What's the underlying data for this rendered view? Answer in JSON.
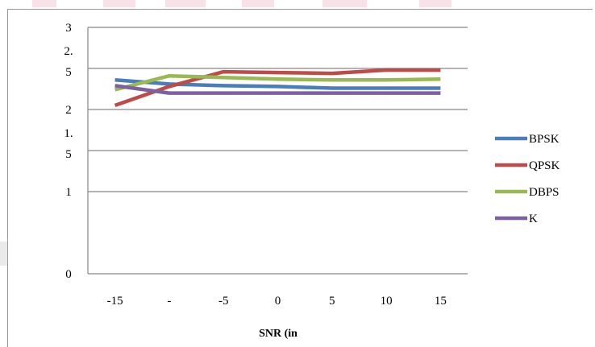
{
  "chart_data": {
    "type": "line",
    "title": "",
    "xlabel": "SNR (in",
    "ylabel": "",
    "x_tick_labels": [
      "-15",
      "-",
      "-5",
      "0",
      "5",
      "10",
      "15"
    ],
    "y_tick_labels": [
      "0",
      "1",
      "1.\n5",
      "2",
      "2.\n5",
      "3"
    ],
    "y_ticks": [
      0,
      1,
      1.5,
      2,
      2.5,
      3
    ],
    "ylim": [
      0,
      3
    ],
    "grid": true,
    "legend_position": "right",
    "series": [
      {
        "name": "BPSK",
        "color": "#4a7ebb",
        "values": [
          2.36,
          2.31,
          2.29,
          2.28,
          2.26,
          2.26,
          2.26
        ]
      },
      {
        "name": "QPSK",
        "color": "#be4b48",
        "values": [
          2.05,
          2.28,
          2.46,
          2.45,
          2.44,
          2.48,
          2.48
        ]
      },
      {
        "name": "DBPS",
        "color": "#98b954",
        "values": [
          2.24,
          2.41,
          2.39,
          2.37,
          2.36,
          2.36,
          2.37
        ]
      },
      {
        "name": "K",
        "color": "#7d60a0",
        "values": [
          2.29,
          2.2,
          2.2,
          2.2,
          2.2,
          2.2,
          2.2
        ]
      }
    ]
  }
}
